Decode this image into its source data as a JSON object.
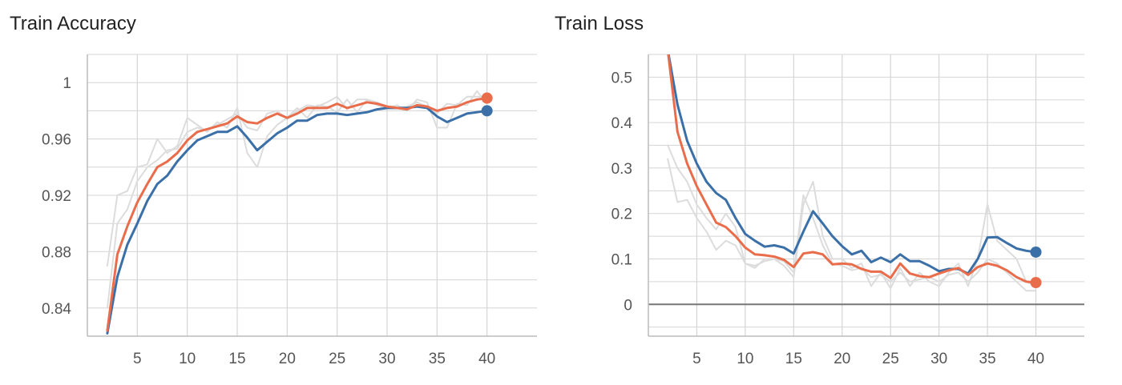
{
  "colors": {
    "blue": "#3a6fa8",
    "orange": "#e96d4b",
    "raw": "#dcdcdc",
    "grid": "#d5d5d5",
    "axis": "#bbbbbb",
    "zero_line": "#777777"
  },
  "chart_data": [
    {
      "type": "line",
      "title": "Train Accuracy",
      "xlabel": "",
      "ylabel": "",
      "xlim": [
        0,
        45
      ],
      "ylim": [
        0.82,
        1.02
      ],
      "xticks": [
        5,
        10,
        15,
        20,
        25,
        30,
        35,
        40
      ],
      "yticks": [
        0.84,
        0.88,
        0.92,
        0.96,
        1
      ],
      "ytick_labels": [
        "0.84",
        "0.88",
        "0.92",
        "0.96",
        "1"
      ],
      "grid": true,
      "x": [
        2,
        3,
        4,
        5,
        6,
        7,
        8,
        9,
        10,
        11,
        12,
        13,
        14,
        15,
        16,
        17,
        18,
        19,
        20,
        21,
        22,
        23,
        24,
        25,
        26,
        27,
        28,
        29,
        30,
        31,
        32,
        33,
        34,
        35,
        36,
        37,
        38,
        39,
        40
      ],
      "series": [
        {
          "color": "blue",
          "values": [
            0.822,
            0.862,
            0.885,
            0.9,
            0.916,
            0.928,
            0.934,
            0.944,
            0.952,
            0.959,
            0.962,
            0.965,
            0.965,
            0.969,
            0.961,
            0.952,
            0.958,
            0.964,
            0.968,
            0.973,
            0.973,
            0.977,
            0.978,
            0.978,
            0.977,
            0.978,
            0.979,
            0.981,
            0.982,
            0.982,
            0.982,
            0.983,
            0.982,
            0.976,
            0.972,
            0.975,
            0.978,
            0.979,
            0.98
          ]
        },
        {
          "color": "orange",
          "values": [
            0.824,
            0.878,
            0.898,
            0.915,
            0.928,
            0.94,
            0.944,
            0.95,
            0.959,
            0.965,
            0.967,
            0.969,
            0.971,
            0.976,
            0.972,
            0.971,
            0.975,
            0.978,
            0.975,
            0.978,
            0.982,
            0.982,
            0.982,
            0.985,
            0.982,
            0.984,
            0.986,
            0.985,
            0.983,
            0.982,
            0.981,
            0.984,
            0.983,
            0.98,
            0.982,
            0.983,
            0.986,
            0.988,
            0.989
          ]
        },
        {
          "color": "raw",
          "values": [
            0.87,
            0.92,
            0.923,
            0.94,
            0.942,
            0.96,
            0.95,
            0.955,
            0.975,
            0.97,
            0.965,
            0.972,
            0.968,
            0.982,
            0.95,
            0.94,
            0.962,
            0.97,
            0.975,
            0.982,
            0.975,
            0.984,
            0.983,
            0.979,
            0.988,
            0.979,
            0.988,
            0.984,
            0.982,
            0.984,
            0.98,
            0.988,
            0.986,
            0.968,
            0.968,
            0.985,
            0.984,
            0.994,
            0.985
          ]
        },
        {
          "color": "raw",
          "values": [
            0.84,
            0.9,
            0.91,
            0.93,
            0.94,
            0.945,
            0.952,
            0.953,
            0.965,
            0.968,
            0.966,
            0.97,
            0.974,
            0.978,
            0.968,
            0.966,
            0.978,
            0.98,
            0.974,
            0.98,
            0.984,
            0.983,
            0.986,
            0.99,
            0.981,
            0.988,
            0.988,
            0.986,
            0.983,
            0.982,
            0.983,
            0.986,
            0.983,
            0.978,
            0.985,
            0.984,
            0.99,
            0.99,
            0.99
          ]
        }
      ]
    },
    {
      "type": "line",
      "title": "Train Loss",
      "xlabel": "",
      "ylabel": "",
      "xlim": [
        0,
        45
      ],
      "ylim": [
        -0.07,
        0.55
      ],
      "xticks": [
        5,
        10,
        15,
        20,
        25,
        30,
        35,
        40
      ],
      "yticks": [
        0,
        0.1,
        0.2,
        0.3,
        0.4,
        0.5
      ],
      "ytick_labels": [
        "0",
        "0.1",
        "0.2",
        "0.3",
        "0.4",
        "0.5"
      ],
      "grid": true,
      "x": [
        2,
        3,
        4,
        5,
        6,
        7,
        8,
        9,
        10,
        11,
        12,
        13,
        14,
        15,
        16,
        17,
        18,
        19,
        20,
        21,
        22,
        23,
        24,
        25,
        26,
        27,
        28,
        29,
        30,
        31,
        32,
        33,
        34,
        35,
        36,
        37,
        38,
        39,
        40
      ],
      "series": [
        {
          "color": "blue",
          "values": [
            0.56,
            0.44,
            0.36,
            0.31,
            0.27,
            0.245,
            0.23,
            0.19,
            0.155,
            0.14,
            0.127,
            0.13,
            0.125,
            0.112,
            0.16,
            0.205,
            0.178,
            0.15,
            0.128,
            0.11,
            0.118,
            0.093,
            0.103,
            0.093,
            0.11,
            0.095,
            0.095,
            0.085,
            0.073,
            0.078,
            0.078,
            0.068,
            0.1,
            0.147,
            0.148,
            0.135,
            0.123,
            0.118,
            0.115
          ]
        },
        {
          "color": "orange",
          "values": [
            0.56,
            0.38,
            0.31,
            0.26,
            0.22,
            0.18,
            0.17,
            0.15,
            0.125,
            0.11,
            0.108,
            0.105,
            0.098,
            0.082,
            0.112,
            0.115,
            0.11,
            0.088,
            0.09,
            0.088,
            0.078,
            0.072,
            0.072,
            0.058,
            0.09,
            0.068,
            0.062,
            0.06,
            0.068,
            0.075,
            0.08,
            0.065,
            0.082,
            0.09,
            0.085,
            0.075,
            0.06,
            0.05,
            0.048
          ]
        },
        {
          "color": "raw",
          "values": [
            0.35,
            0.3,
            0.27,
            0.22,
            0.19,
            0.165,
            0.2,
            0.17,
            0.09,
            0.08,
            0.1,
            0.1,
            0.085,
            0.06,
            0.22,
            0.27,
            0.15,
            0.1,
            0.1,
            0.08,
            0.09,
            0.04,
            0.07,
            0.035,
            0.08,
            0.04,
            0.07,
            0.05,
            0.04,
            0.07,
            0.09,
            0.04,
            0.1,
            0.22,
            0.14,
            0.12,
            0.1,
            0.05,
            0.04
          ]
        },
        {
          "color": "raw",
          "values": [
            0.32,
            0.225,
            0.23,
            0.19,
            0.16,
            0.12,
            0.14,
            0.13,
            0.09,
            0.085,
            0.095,
            0.1,
            0.095,
            0.07,
            0.24,
            0.19,
            0.13,
            0.09,
            0.085,
            0.075,
            0.08,
            0.06,
            0.065,
            0.05,
            0.07,
            0.05,
            0.055,
            0.06,
            0.05,
            0.065,
            0.07,
            0.05,
            0.07,
            0.1,
            0.09,
            0.07,
            0.05,
            0.03,
            0.03
          ]
        }
      ]
    }
  ]
}
